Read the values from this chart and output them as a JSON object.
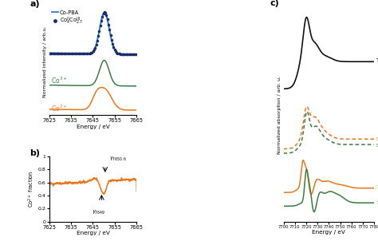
{
  "panel_a": {
    "xlim": [
      7625,
      7665
    ],
    "xticks": [
      7625,
      7635,
      7645,
      7655,
      7665
    ],
    "co2plus_color": "#E8781A",
    "co3plus_color": "#3A7D44",
    "copba_color": "#3377CC",
    "ylabel": "Normalized intensity / arb.u.",
    "xlabel": "Energy / eV"
  },
  "panel_b": {
    "xlim": [
      7625,
      7665
    ],
    "ylim": [
      0,
      1
    ],
    "xticks": [
      7625,
      7635,
      7645,
      7655,
      7665
    ],
    "yticks": [
      0,
      0.2,
      0.4,
      0.6,
      0.8,
      1
    ],
    "color": "#E8781A",
    "xlabel": "Energy / eV",
    "ylabel": "Co$^{2+}$ fraction"
  },
  "panel_c": {
    "xlim": [
      7700,
      7780
    ],
    "xticks": [
      7700,
      7710,
      7720,
      7730,
      7740,
      7750,
      7760,
      7770,
      7780
    ],
    "trans_color": "#111111",
    "s7650_color": "#E8781A",
    "s7649_color": "#3A7D44",
    "sco2_color": "#E8781A",
    "sco3_color": "#3A7D44",
    "xlabel": "Energy / eV",
    "ylabel": "Normalized absorption / arb. u."
  }
}
